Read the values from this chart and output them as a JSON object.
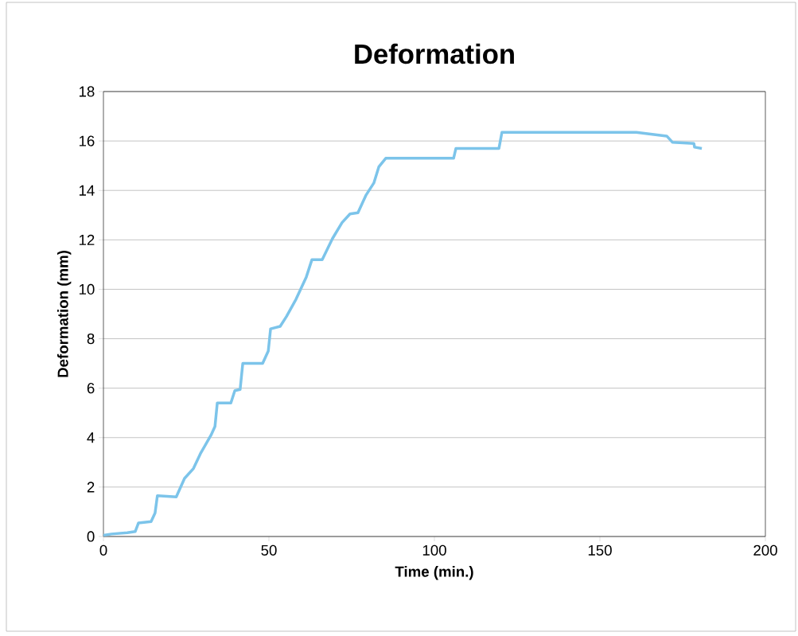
{
  "chart_data": {
    "type": "line",
    "title": "Deformation",
    "xlabel": "Time (min.)",
    "ylabel": "Deformation (mm)",
    "xlim": [
      0,
      200
    ],
    "xticks": [
      0,
      50,
      100,
      150,
      200
    ],
    "ylim": [
      0,
      18
    ],
    "yticks": [
      0,
      2,
      4,
      6,
      8,
      10,
      12,
      14,
      16,
      18
    ],
    "grid": "y",
    "marker": "none",
    "line_style": "solid",
    "series": [
      {
        "color": "#7cc4ea",
        "x": [
          0,
          2.4,
          7.2,
          9.6,
          10.6,
          14.4,
          15.6,
          16.3,
          22,
          23,
          24.5,
          27.2,
          29.3,
          32.5,
          33.7,
          34.4,
          38.5,
          39.7,
          41.3,
          42.1,
          48.1,
          49.8,
          50.5,
          53.4,
          55.3,
          58.2,
          61.3,
          63,
          66.1,
          69.2,
          72.1,
          74.5,
          76.9,
          79.3,
          81.7,
          83.2,
          85.3,
          105.8,
          106.5,
          119.5,
          120.4,
          137,
          161,
          170.2,
          171.9,
          178.4,
          178.6,
          180.8
        ],
        "values": [
          0.05,
          0.1,
          0.15,
          0.2,
          0.55,
          0.6,
          0.95,
          1.65,
          1.6,
          1.9,
          2.35,
          2.75,
          3.35,
          4.1,
          4.45,
          5.4,
          5.4,
          5.9,
          5.95,
          7.0,
          7.0,
          7.5,
          8.4,
          8.5,
          8.9,
          9.6,
          10.5,
          11.2,
          11.2,
          12.05,
          12.7,
          13.05,
          13.1,
          13.8,
          14.3,
          14.95,
          15.3,
          15.3,
          15.7,
          15.7,
          16.35,
          16.35,
          16.35,
          16.2,
          15.95,
          15.9,
          15.75,
          15.7
        ]
      }
    ]
  }
}
